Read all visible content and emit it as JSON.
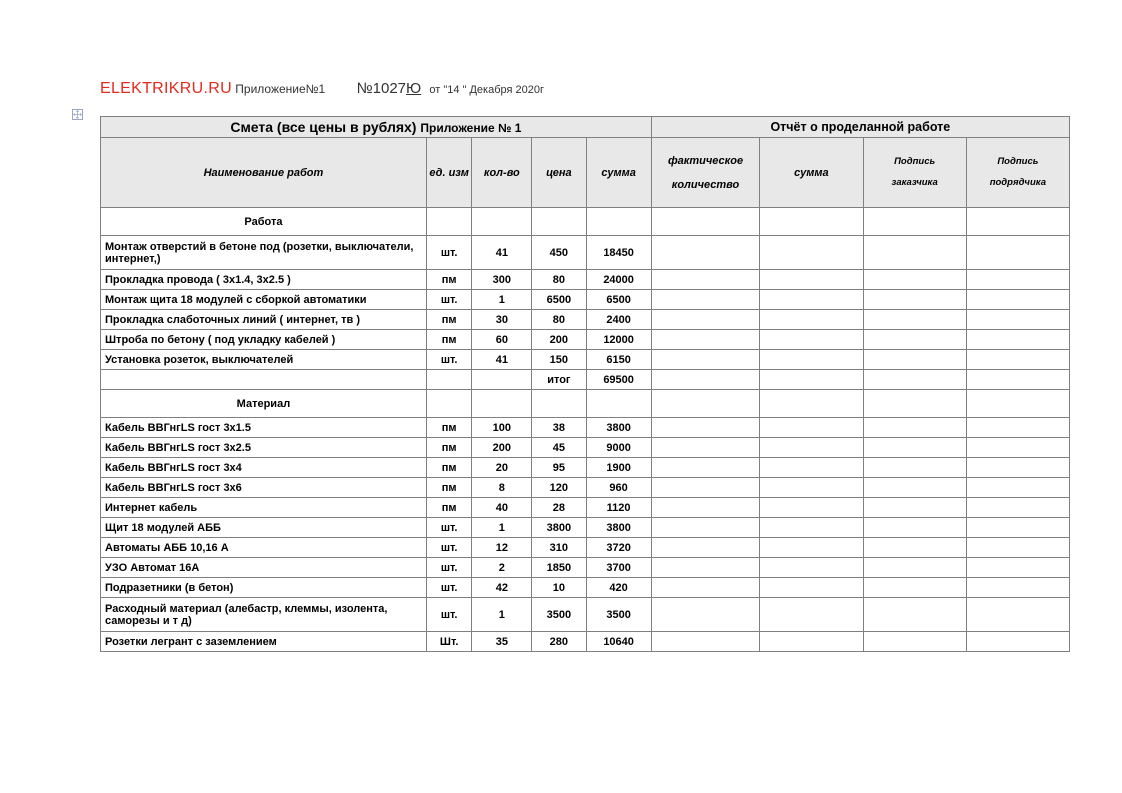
{
  "header": {
    "brand": "ELEKTRIKRU.RU",
    "appendix": "Приложение№1",
    "doc_prefix": "№",
    "doc_num": "1027",
    "doc_suffix": "Ю",
    "date_text": "от  \"14 \"  Декабря   2020г"
  },
  "titles": {
    "left_main": "Смета (все цены в рублях)",
    "left_sub": "Приложение № 1",
    "right": "Отчёт  о проделанной работе"
  },
  "columns": {
    "name": "Наименование  работ",
    "unit": "ед. изм",
    "qty": "кол-во",
    "price": "цена",
    "sum": "сумма",
    "fact_qty_l1": "фактическое",
    "fact_qty_l2": "количество",
    "fact_sum": "сумма",
    "sig1_l1": "Подпись",
    "sig1_l2": "заказчика",
    "sig2_l1": "Подпись",
    "sig2_l2": "подрядчика"
  },
  "sections": {
    "work": "Работа",
    "material": "Материал"
  },
  "work_rows": [
    {
      "name": "Монтаж отверстий в бетоне под (розетки, выключатели, интернет,)",
      "unit": "шт.",
      "qty": "41",
      "price": "450",
      "sum": "18450",
      "tall": true
    },
    {
      "name": "Прокладка провода ( 3х1.4, 3х2.5 )",
      "unit": "пм",
      "qty": "300",
      "price": "80",
      "sum": "24000"
    },
    {
      "name": "Монтаж щита 18 модулей с сборкой автоматики",
      "unit": "шт.",
      "qty": "1",
      "price": "6500",
      "sum": "6500"
    },
    {
      "name": "Прокладка слаботочных линий ( интернет, тв )",
      "unit": "пм",
      "qty": "30",
      "price": "80",
      "sum": "2400"
    },
    {
      "name": "Штроба по бетону ( под укладку кабелей )",
      "unit": "пм",
      "qty": "60",
      "price": "200",
      "sum": "12000"
    },
    {
      "name": "Установка розеток, выключателей",
      "unit": "шт.",
      "qty": "41",
      "price": "150",
      "sum": "6150"
    }
  ],
  "work_total": {
    "label": "итог",
    "sum": "69500"
  },
  "mat_rows": [
    {
      "name": "Кабель ВВГнгLS гост 3х1.5",
      "unit": "пм",
      "qty": "100",
      "price": "38",
      "sum": "3800"
    },
    {
      "name": "Кабель ВВГнгLS гост 3х2.5",
      "unit": "пм",
      "qty": "200",
      "price": "45",
      "sum": "9000"
    },
    {
      "name": "Кабель ВВГнгLS гост 3х4",
      "unit": "пм",
      "qty": "20",
      "price": "95",
      "sum": "1900"
    },
    {
      "name": "Кабель ВВГнгLS гост 3х6",
      "unit": "пм",
      "qty": "8",
      "price": "120",
      "sum": "960"
    },
    {
      "name": "Интернет кабель",
      "unit": "пм",
      "qty": "40",
      "price": "28",
      "sum": "1120"
    },
    {
      "name": "Щит 18 модулей АББ",
      "unit": "шт.",
      "qty": "1",
      "price": "3800",
      "sum": "3800"
    },
    {
      "name": "Автоматы АББ 10,16 А",
      "unit": "шт.",
      "qty": "12",
      "price": "310",
      "sum": "3720"
    },
    {
      "name": "УЗО Автомат 16А",
      "unit": "шт.",
      "qty": "2",
      "price": "1850",
      "sum": "3700"
    },
    {
      "name": "Подразетники (в бетон)",
      "unit": "шт.",
      "qty": "42",
      "price": "10",
      "sum": "420"
    },
    {
      "name": "Расходный материал (алебастр, клеммы, изолента, саморезы и т д)",
      "unit": "шт.",
      "qty": "1",
      "price": "3500",
      "sum": "3500",
      "tall": true
    },
    {
      "name": "Розетки легрант с заземлением",
      "unit": "Шт.",
      "qty": "35",
      "price": "280",
      "sum": "10640"
    }
  ],
  "style": {
    "brand_color": "#e22b1f",
    "border_color": "#808080",
    "header_bg": "#e8e8e8",
    "page_bg": "#ffffff",
    "text_color": "#000000"
  }
}
